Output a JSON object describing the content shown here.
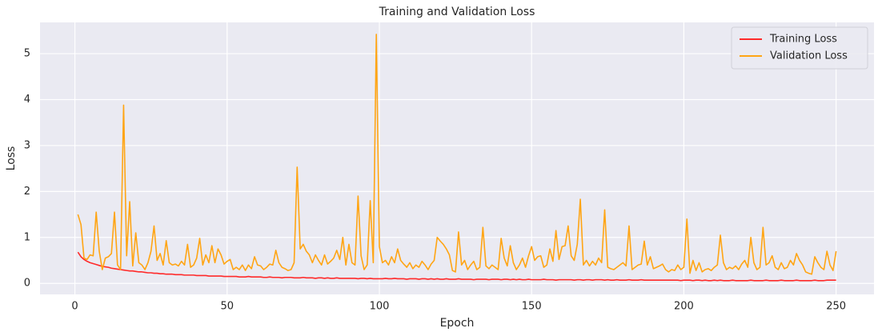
{
  "chart_data": {
    "type": "line",
    "title": "Training and Validation Loss",
    "x_label": "Epoch",
    "y_label": "Loss",
    "x": [
      1,
      2,
      3,
      4,
      5,
      6,
      7,
      8,
      9,
      10,
      11,
      12,
      13,
      14,
      15,
      16,
      17,
      18,
      19,
      20,
      21,
      22,
      23,
      24,
      25,
      26,
      27,
      28,
      29,
      30,
      31,
      32,
      33,
      34,
      35,
      36,
      37,
      38,
      39,
      40,
      41,
      42,
      43,
      44,
      45,
      46,
      47,
      48,
      49,
      50,
      51,
      52,
      53,
      54,
      55,
      56,
      57,
      58,
      59,
      60,
      61,
      62,
      63,
      64,
      65,
      66,
      67,
      68,
      69,
      70,
      71,
      72,
      73,
      74,
      75,
      76,
      77,
      78,
      79,
      80,
      81,
      82,
      83,
      84,
      85,
      86,
      87,
      88,
      89,
      90,
      91,
      92,
      93,
      94,
      95,
      96,
      97,
      98,
      99,
      100,
      101,
      102,
      103,
      104,
      105,
      106,
      107,
      108,
      109,
      110,
      111,
      112,
      113,
      114,
      115,
      116,
      117,
      118,
      119,
      120,
      121,
      122,
      123,
      124,
      125,
      126,
      127,
      128,
      129,
      130,
      131,
      132,
      133,
      134,
      135,
      136,
      137,
      138,
      139,
      140,
      141,
      142,
      143,
      144,
      145,
      146,
      147,
      148,
      149,
      150,
      151,
      152,
      153,
      154,
      155,
      156,
      157,
      158,
      159,
      160,
      161,
      162,
      163,
      164,
      165,
      166,
      167,
      168,
      169,
      170,
      171,
      172,
      173,
      174,
      175,
      176,
      177,
      178,
      179,
      180,
      181,
      182,
      183,
      184,
      185,
      186,
      187,
      188,
      189,
      190,
      191,
      192,
      193,
      194,
      195,
      196,
      197,
      198,
      199,
      200,
      201,
      202,
      203,
      204,
      205,
      206,
      207,
      208,
      209,
      210,
      211,
      212,
      213,
      214,
      215,
      216,
      217,
      218,
      219,
      220,
      221,
      222,
      223,
      224,
      225,
      226,
      227,
      228,
      229,
      230,
      231,
      232,
      233,
      234,
      235,
      236,
      237,
      238,
      239,
      240,
      241,
      242,
      243,
      244,
      245,
      246,
      247,
      248,
      249,
      250
    ],
    "series": [
      {
        "name": "Training Loss",
        "color": "#ff2a2a",
        "values": [
          0.68,
          0.58,
          0.52,
          0.48,
          0.45,
          0.43,
          0.41,
          0.39,
          0.37,
          0.36,
          0.35,
          0.33,
          0.32,
          0.31,
          0.3,
          0.29,
          0.28,
          0.27,
          0.27,
          0.26,
          0.25,
          0.25,
          0.24,
          0.23,
          0.23,
          0.22,
          0.22,
          0.21,
          0.21,
          0.2,
          0.2,
          0.2,
          0.19,
          0.19,
          0.19,
          0.18,
          0.18,
          0.18,
          0.18,
          0.17,
          0.17,
          0.17,
          0.17,
          0.16,
          0.16,
          0.16,
          0.16,
          0.16,
          0.15,
          0.15,
          0.15,
          0.15,
          0.15,
          0.14,
          0.14,
          0.14,
          0.15,
          0.14,
          0.14,
          0.14,
          0.14,
          0.13,
          0.13,
          0.14,
          0.13,
          0.13,
          0.13,
          0.12,
          0.13,
          0.13,
          0.13,
          0.12,
          0.12,
          0.12,
          0.13,
          0.12,
          0.12,
          0.12,
          0.11,
          0.12,
          0.12,
          0.11,
          0.12,
          0.11,
          0.11,
          0.12,
          0.11,
          0.11,
          0.11,
          0.11,
          0.11,
          0.11,
          0.1,
          0.11,
          0.11,
          0.1,
          0.11,
          0.1,
          0.1,
          0.1,
          0.1,
          0.11,
          0.1,
          0.1,
          0.11,
          0.1,
          0.1,
          0.1,
          0.09,
          0.1,
          0.1,
          0.1,
          0.09,
          0.1,
          0.1,
          0.09,
          0.1,
          0.09,
          0.1,
          0.09,
          0.09,
          0.1,
          0.09,
          0.09,
          0.09,
          0.1,
          0.09,
          0.09,
          0.09,
          0.09,
          0.08,
          0.09,
          0.09,
          0.09,
          0.09,
          0.08,
          0.09,
          0.09,
          0.09,
          0.08,
          0.09,
          0.09,
          0.08,
          0.09,
          0.08,
          0.09,
          0.08,
          0.08,
          0.09,
          0.08,
          0.08,
          0.08,
          0.08,
          0.09,
          0.08,
          0.08,
          0.08,
          0.07,
          0.08,
          0.08,
          0.08,
          0.08,
          0.08,
          0.07,
          0.08,
          0.08,
          0.07,
          0.08,
          0.08,
          0.07,
          0.08,
          0.08,
          0.08,
          0.07,
          0.08,
          0.07,
          0.07,
          0.08,
          0.07,
          0.07,
          0.07,
          0.08,
          0.07,
          0.07,
          0.07,
          0.08,
          0.07,
          0.07,
          0.07,
          0.07,
          0.07,
          0.07,
          0.07,
          0.07,
          0.07,
          0.07,
          0.07,
          0.07,
          0.06,
          0.07,
          0.07,
          0.07,
          0.06,
          0.07,
          0.07,
          0.06,
          0.07,
          0.06,
          0.06,
          0.07,
          0.06,
          0.07,
          0.06,
          0.06,
          0.06,
          0.07,
          0.06,
          0.06,
          0.06,
          0.06,
          0.06,
          0.07,
          0.06,
          0.06,
          0.06,
          0.06,
          0.07,
          0.06,
          0.06,
          0.06,
          0.06,
          0.07,
          0.06,
          0.06,
          0.06,
          0.06,
          0.07,
          0.06,
          0.06,
          0.06,
          0.06,
          0.06,
          0.07,
          0.06,
          0.06,
          0.06,
          0.07,
          0.07,
          0.07,
          0.07
        ]
      },
      {
        "name": "Validation Loss",
        "color": "#ffa514",
        "values": [
          1.5,
          1.28,
          0.55,
          0.52,
          0.62,
          0.6,
          1.55,
          0.7,
          0.3,
          0.55,
          0.58,
          0.65,
          1.55,
          0.4,
          0.3,
          3.88,
          0.6,
          1.78,
          0.38,
          1.1,
          0.45,
          0.4,
          0.3,
          0.45,
          0.7,
          1.25,
          0.5,
          0.65,
          0.4,
          0.93,
          0.45,
          0.4,
          0.42,
          0.38,
          0.48,
          0.4,
          0.85,
          0.35,
          0.4,
          0.55,
          0.98,
          0.4,
          0.62,
          0.45,
          0.82,
          0.45,
          0.75,
          0.62,
          0.42,
          0.48,
          0.52,
          0.3,
          0.35,
          0.3,
          0.4,
          0.28,
          0.4,
          0.32,
          0.58,
          0.4,
          0.38,
          0.3,
          0.35,
          0.42,
          0.4,
          0.72,
          0.45,
          0.35,
          0.32,
          0.28,
          0.3,
          0.45,
          2.53,
          0.75,
          0.85,
          0.7,
          0.62,
          0.45,
          0.62,
          0.5,
          0.4,
          0.62,
          0.42,
          0.48,
          0.55,
          0.72,
          0.52,
          1.0,
          0.4,
          0.85,
          0.45,
          0.4,
          1.9,
          0.6,
          0.3,
          0.4,
          1.8,
          0.45,
          5.42,
          0.8,
          0.45,
          0.5,
          0.4,
          0.58,
          0.45,
          0.75,
          0.5,
          0.42,
          0.35,
          0.45,
          0.32,
          0.4,
          0.35,
          0.48,
          0.4,
          0.3,
          0.42,
          0.5,
          1.0,
          0.92,
          0.85,
          0.75,
          0.62,
          0.28,
          0.25,
          1.12,
          0.4,
          0.5,
          0.3,
          0.4,
          0.48,
          0.3,
          0.35,
          1.22,
          0.38,
          0.32,
          0.4,
          0.35,
          0.3,
          0.98,
          0.55,
          0.38,
          0.82,
          0.45,
          0.3,
          0.4,
          0.55,
          0.35,
          0.6,
          0.8,
          0.5,
          0.58,
          0.6,
          0.35,
          0.4,
          0.75,
          0.48,
          1.15,
          0.52,
          0.8,
          0.82,
          1.25,
          0.6,
          0.5,
          0.85,
          1.83,
          0.4,
          0.5,
          0.38,
          0.48,
          0.4,
          0.55,
          0.45,
          1.6,
          0.35,
          0.32,
          0.3,
          0.35,
          0.4,
          0.45,
          0.38,
          1.25,
          0.3,
          0.35,
          0.4,
          0.42,
          0.92,
          0.4,
          0.58,
          0.32,
          0.35,
          0.38,
          0.42,
          0.3,
          0.25,
          0.3,
          0.28,
          0.4,
          0.3,
          0.35,
          1.4,
          0.22,
          0.5,
          0.28,
          0.45,
          0.25,
          0.3,
          0.32,
          0.28,
          0.35,
          0.4,
          1.05,
          0.45,
          0.3,
          0.35,
          0.32,
          0.38,
          0.3,
          0.42,
          0.5,
          0.35,
          1.0,
          0.45,
          0.3,
          0.35,
          1.22,
          0.4,
          0.45,
          0.6,
          0.35,
          0.3,
          0.45,
          0.32,
          0.35,
          0.5,
          0.4,
          0.65,
          0.5,
          0.4,
          0.25,
          0.22,
          0.2,
          0.58,
          0.45,
          0.35,
          0.3,
          0.7,
          0.4,
          0.28,
          0.7
        ]
      }
    ],
    "xlim": [
      -11.45,
      262.45
    ],
    "ylim": [
      -0.24,
      5.68
    ],
    "xticks": [
      0,
      50,
      100,
      150,
      200,
      250
    ],
    "yticks": [
      0,
      1,
      2,
      3,
      4,
      5
    ],
    "grid": true,
    "legend": "upper right"
  }
}
